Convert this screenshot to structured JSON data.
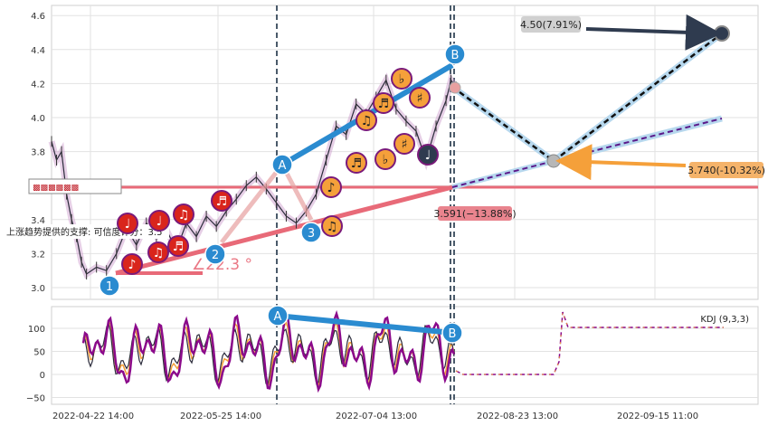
{
  "chart_data": [
    {
      "type": "line",
      "panel": "price",
      "yticks": [
        "4.6",
        "4.4",
        "4.2",
        "4.0",
        "3.8",
        "3.6",
        "3.4",
        "3.2",
        "3.0"
      ],
      "ylim": [
        2.93,
        4.63
      ],
      "grid": true,
      "series": [
        {
          "values": [
            [
              0.31,
              3.86
            ],
            [
              0.32,
              3.75
            ],
            [
              0.33,
              3.8
            ],
            [
              0.34,
              3.55
            ],
            [
              0.35,
              3.4
            ],
            [
              0.36,
              3.3
            ],
            [
              0.37,
              3.15
            ],
            [
              0.38,
              3.08
            ],
            [
              0.4,
              3.12
            ],
            [
              0.42,
              3.1
            ],
            [
              0.44,
              3.2
            ],
            [
              0.46,
              3.35
            ],
            [
              0.48,
              3.25
            ],
            [
              0.5,
              3.38
            ],
            [
              0.52,
              3.3
            ],
            [
              0.54,
              3.34
            ],
            [
              0.56,
              3.22
            ],
            [
              0.58,
              3.38
            ],
            [
              0.6,
              3.3
            ],
            [
              0.62,
              3.42
            ],
            [
              0.64,
              3.36
            ],
            [
              0.66,
              3.45
            ],
            [
              0.68,
              3.52
            ],
            [
              0.7,
              3.6
            ],
            [
              0.72,
              3.65
            ],
            [
              0.74,
              3.58
            ],
            [
              0.76,
              3.5
            ],
            [
              0.78,
              3.42
            ],
            [
              0.8,
              3.38
            ],
            [
              0.82,
              3.45
            ],
            [
              0.84,
              3.55
            ],
            [
              0.86,
              3.75
            ],
            [
              0.88,
              3.95
            ],
            [
              0.9,
              3.9
            ],
            [
              0.92,
              4.08
            ],
            [
              0.94,
              4.02
            ],
            [
              0.96,
              4.12
            ],
            [
              0.98,
              4.22
            ],
            [
              1.0,
              4.05
            ],
            [
              1.02,
              3.98
            ],
            [
              1.04,
              3.92
            ],
            [
              1.06,
              3.75
            ],
            [
              1.08,
              3.95
            ],
            [
              1.1,
              4.1
            ],
            [
              1.11,
              4.22
            ],
            [
              1.12,
              4.18
            ]
          ]
        },
        {
          "values": [
            [
              1.12,
              4.18
            ],
            [
              1.39,
              3.74
            ],
            [
              1.92,
              4.5
            ]
          ]
        },
        {
          "values": [
            [
              1.39,
              3.74
            ],
            [
              1.92,
              4.0
            ]
          ]
        }
      ],
      "wave_labels": [
        "1",
        "2",
        "3",
        "A",
        "B"
      ],
      "trend_angle": "∠22.3 °",
      "support_text": "上涨趋势提供的支撑: 可信度评分：3.5",
      "legend_icons": "▩▩▩▩▩▩",
      "levels": [
        {
          "text": "4.50(7.91%)",
          "value": 4.5,
          "color": "#d0d0d0"
        },
        {
          "text": "3.740(-10.32%)",
          "value": 3.74,
          "color": "#f5b36a"
        },
        {
          "text": "3.591(−13.88%)",
          "value": 3.591,
          "color": "#e9848e"
        }
      ],
      "horizontal_line": 3.6
    },
    {
      "type": "line",
      "panel": "kdj",
      "legend": "KDJ (9,3,3)",
      "yticks": [
        "100",
        "50",
        "0",
        "−50"
      ],
      "ylim": [
        -60,
        145
      ],
      "wave_labels": [
        "A",
        "B"
      ]
    }
  ],
  "xticks": [
    "2022-04-22 14:00",
    "2022-05-25 14:00",
    "2022-07-04 13:00",
    "2022-08-23 13:00",
    "2022-09-15 11:00"
  ],
  "colors": {
    "red_level": "#e86a78",
    "blue_line": "#2a8bd0",
    "orange_marker": "#f5a03a",
    "red_marker": "#d9251c",
    "purple": "#8b0a8b"
  }
}
